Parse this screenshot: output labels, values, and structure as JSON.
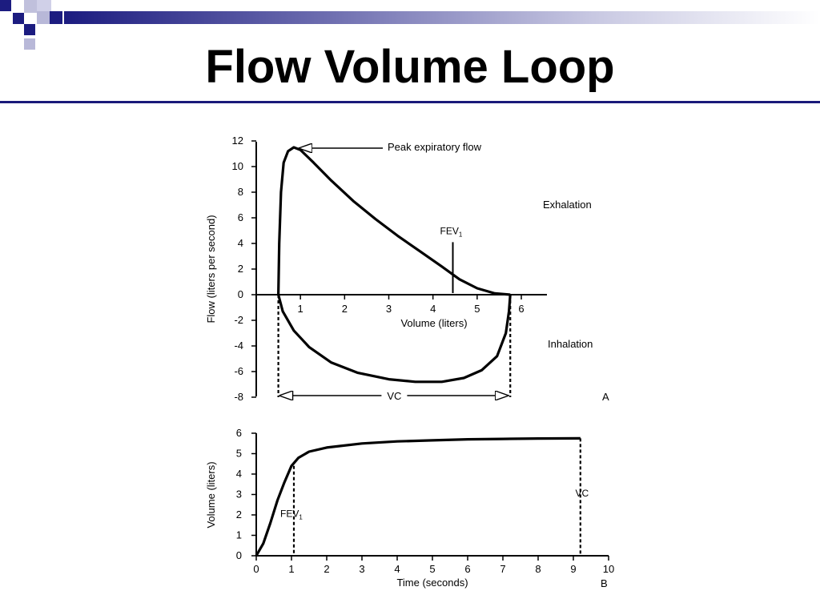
{
  "slide": {
    "title": "Flow Volume Loop",
    "colors": {
      "accent": "#1c1c80",
      "decor_light": "#b8b8d8"
    }
  },
  "chart_data": [
    {
      "type": "line",
      "panel_label": "A",
      "xlabel": "Volume (liters)",
      "ylabel": "Flow (liters per second)",
      "xlim": [
        0,
        6
      ],
      "ylim": [
        -8,
        12
      ],
      "x_ticks": [
        1,
        2,
        3,
        4,
        5,
        6
      ],
      "y_ticks": [
        12,
        10,
        8,
        6,
        4,
        2,
        0,
        -2,
        -4,
        -6,
        -8
      ],
      "grid": false,
      "series": [
        {
          "values": [
            [
              0.5,
              0
            ],
            [
              0.52,
              4
            ],
            [
              0.56,
              8
            ],
            [
              0.62,
              10.3
            ],
            [
              0.72,
              11.2
            ],
            [
              0.85,
              11.5
            ],
            [
              1.0,
              11.3
            ],
            [
              1.3,
              10.3
            ],
            [
              1.7,
              8.9
            ],
            [
              2.2,
              7.3
            ],
            [
              2.7,
              5.9
            ],
            [
              3.2,
              4.6
            ],
            [
              3.7,
              3.4
            ],
            [
              4.2,
              2.2
            ],
            [
              4.6,
              1.2
            ],
            [
              5.0,
              0.5
            ],
            [
              5.4,
              0.1
            ],
            [
              5.75,
              0
            ]
          ]
        },
        {
          "values": [
            [
              0.5,
              0
            ],
            [
              0.6,
              -1.3
            ],
            [
              0.85,
              -2.8
            ],
            [
              1.2,
              -4.1
            ],
            [
              1.7,
              -5.3
            ],
            [
              2.3,
              -6.1
            ],
            [
              3.0,
              -6.6
            ],
            [
              3.6,
              -6.8
            ],
            [
              4.2,
              -6.8
            ],
            [
              4.7,
              -6.5
            ],
            [
              5.1,
              -5.9
            ],
            [
              5.45,
              -4.8
            ],
            [
              5.65,
              -3.0
            ],
            [
              5.72,
              -1.3
            ],
            [
              5.75,
              0
            ]
          ]
        }
      ],
      "annotations": [
        {
          "text": "Peak expiratory flow",
          "x": 0.85,
          "y": 11.5
        },
        {
          "text": "FEV",
          "subscript": "1",
          "x": 4.45,
          "y_top": 4.1
        },
        {
          "text": "Exhalation"
        },
        {
          "text": "Inhalation"
        },
        {
          "text": "VC",
          "x_start": 0.5,
          "x_end": 5.75,
          "y": -8
        }
      ]
    },
    {
      "type": "line",
      "panel_label": "B",
      "xlabel": "Time (seconds)",
      "ylabel": "Volume (liters)",
      "xlim": [
        0,
        10
      ],
      "ylim": [
        0,
        6
      ],
      "x_ticks": [
        0,
        1,
        2,
        3,
        4,
        5,
        6,
        7,
        8,
        9,
        10
      ],
      "y_ticks": [
        6,
        5,
        4,
        3,
        2,
        1,
        0
      ],
      "grid": false,
      "series": [
        {
          "values": [
            [
              0,
              0
            ],
            [
              0.2,
              0.6
            ],
            [
              0.4,
              1.6
            ],
            [
              0.6,
              2.7
            ],
            [
              0.8,
              3.6
            ],
            [
              1.0,
              4.4
            ],
            [
              1.2,
              4.8
            ],
            [
              1.5,
              5.1
            ],
            [
              2,
              5.3
            ],
            [
              3,
              5.5
            ],
            [
              4,
              5.6
            ],
            [
              5,
              5.65
            ],
            [
              6,
              5.7
            ],
            [
              7,
              5.72
            ],
            [
              8,
              5.74
            ],
            [
              9.2,
              5.75
            ]
          ]
        }
      ],
      "annotations": [
        {
          "text": "FEV",
          "subscript": "1",
          "x": 1.0,
          "y": 4.4
        },
        {
          "text": "VC",
          "x": 9.2,
          "y": 5.75
        }
      ]
    }
  ]
}
